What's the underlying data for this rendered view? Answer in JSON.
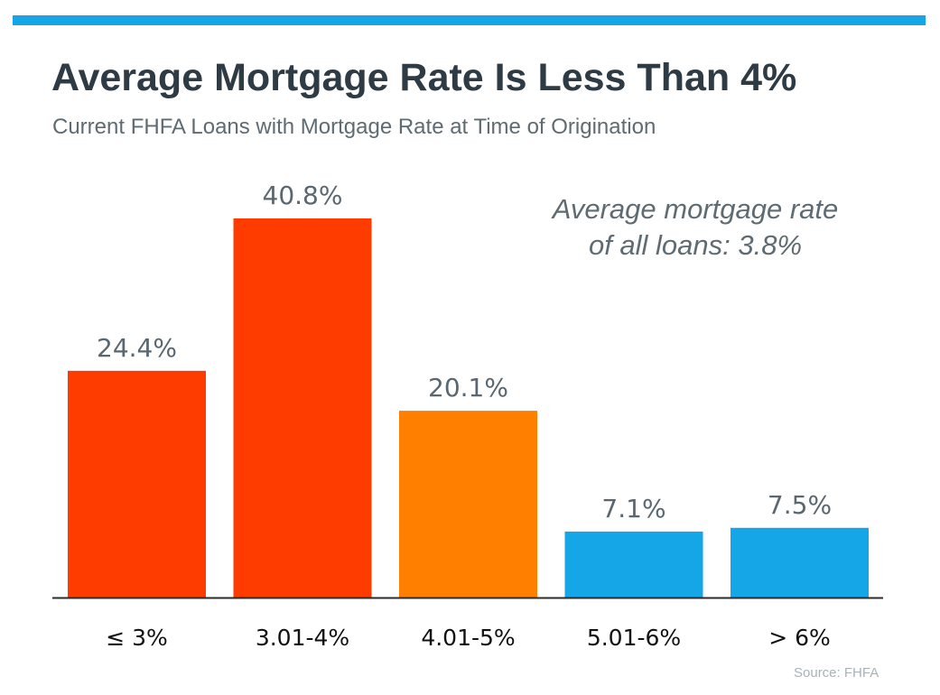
{
  "header": {
    "title": "Average Mortgage Rate Is Less Than 4%",
    "subtitle": "Current FHFA Loans with Mortgage Rate at Time of Origination"
  },
  "annotation": {
    "line1": "Average mortgage rate",
    "line2": "of all loans: 3.8%"
  },
  "source": "Source: FHFA",
  "colors": {
    "top_bar": "#14a6e6",
    "axis": "#2b2b2b",
    "value_label": "#5a6770",
    "category_label": "#111111"
  },
  "chart_data": {
    "type": "bar",
    "title": "Average Mortgage Rate Is Less Than 4%",
    "subtitle": "Current FHFA Loans with Mortgage Rate at Time of Origination",
    "xlabel": "",
    "ylabel": "",
    "categories": [
      "≤ 3%",
      "3.01-4%",
      "4.01-5%",
      "5.01-6%",
      "> 6%"
    ],
    "values": [
      24.4,
      40.8,
      20.1,
      7.1,
      7.5
    ],
    "value_labels": [
      "24.4%",
      "40.8%",
      "20.1%",
      "7.1%",
      "7.5%"
    ],
    "bar_colors": [
      "#ff3c00",
      "#ff3c00",
      "#ff8000",
      "#14a6e6",
      "#14a6e6"
    ],
    "ylim": [
      0,
      40.8
    ],
    "grid": false,
    "legend": "none"
  }
}
